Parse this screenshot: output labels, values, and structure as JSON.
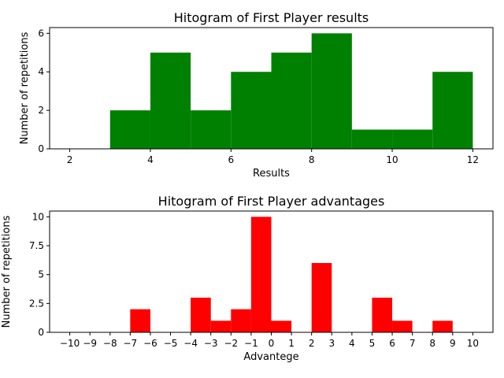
{
  "chart_data": [
    {
      "type": "bar",
      "title": "Hitogram of First Player results",
      "xlabel": "Results",
      "ylabel": "Number of repetitions",
      "xlim": [
        1.5,
        12.5
      ],
      "ylim": [
        0,
        6.3
      ],
      "xticks": [
        2,
        4,
        6,
        8,
        10,
        12
      ],
      "yticks": [
        0,
        2,
        4,
        6
      ],
      "color": "#008000",
      "bins": [
        {
          "x0": 2,
          "x1": 3,
          "value": 0
        },
        {
          "x0": 3,
          "x1": 4,
          "value": 2
        },
        {
          "x0": 4,
          "x1": 5,
          "value": 5
        },
        {
          "x0": 5,
          "x1": 6,
          "value": 2
        },
        {
          "x0": 6,
          "x1": 7,
          "value": 4
        },
        {
          "x0": 7,
          "x1": 8,
          "value": 5
        },
        {
          "x0": 8,
          "x1": 9,
          "value": 6
        },
        {
          "x0": 9,
          "x1": 10,
          "value": 1
        },
        {
          "x0": 10,
          "x1": 11,
          "value": 1
        },
        {
          "x0": 11,
          "x1": 12,
          "value": 4
        }
      ]
    },
    {
      "type": "bar",
      "title": "Hitogram of First Player advantages",
      "xlabel": "Advantege",
      "ylabel": "Number of repetitions",
      "xlim": [
        -11,
        11
      ],
      "ylim": [
        0,
        10.5
      ],
      "xticks": [
        -10,
        -9,
        -8,
        -7,
        -6,
        -5,
        -4,
        -3,
        -2,
        -1,
        0,
        1,
        2,
        3,
        4,
        5,
        6,
        7,
        8,
        9,
        10
      ],
      "yticks": [
        0,
        2.5,
        5,
        7.5,
        10
      ],
      "color": "#ff0000",
      "bins": [
        {
          "x0": -7,
          "x1": -6,
          "value": 2
        },
        {
          "x0": -4,
          "x1": -3,
          "value": 3
        },
        {
          "x0": -3,
          "x1": -2,
          "value": 1
        },
        {
          "x0": -2,
          "x1": -1,
          "value": 2
        },
        {
          "x0": -1,
          "x1": 0,
          "value": 10
        },
        {
          "x0": 0,
          "x1": 1,
          "value": 1
        },
        {
          "x0": 2,
          "x1": 3,
          "value": 6
        },
        {
          "x0": 5,
          "x1": 6,
          "value": 3
        },
        {
          "x0": 6,
          "x1": 7,
          "value": 1
        },
        {
          "x0": 8,
          "x1": 9,
          "value": 1
        }
      ]
    }
  ]
}
